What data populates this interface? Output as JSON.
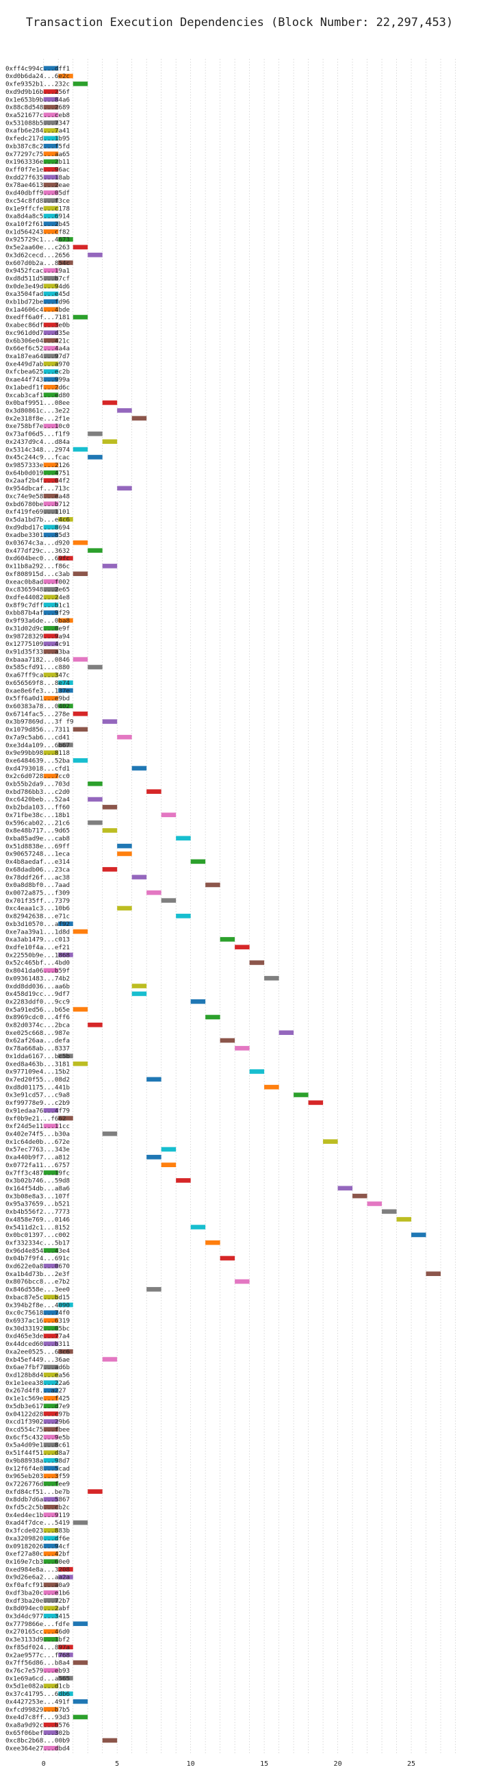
{
  "chart_data": {
    "type": "gantt",
    "title": "Transaction Execution Dependencies (Block Number: 22,297,453)",
    "xlabel": "",
    "ylabel": "",
    "xlim": [
      -2.5,
      29
    ],
    "xticks": [
      0,
      5,
      10,
      15,
      20,
      25
    ],
    "grid": "vertical dotted",
    "legend": "none",
    "palette": [
      "#1f77b4",
      "#ff7f0e",
      "#2ca02c",
      "#d62728",
      "#9467bd",
      "#8c564b",
      "#e377c2",
      "#7f7f7f",
      "#bcbd22",
      "#17becf"
    ],
    "transactions": [
      {
        "label": "0xff4c994c...dff1",
        "start": 0
      },
      {
        "label": "0xd0b6da24...6e2c",
        "start": 1
      },
      {
        "label": "0xfe9352b1...232c",
        "start": 2
      },
      {
        "label": "0xd9d9b16b...256f",
        "start": 0
      },
      {
        "label": "0x1e653b9b...84a6",
        "start": 0
      },
      {
        "label": "0x88c8d548...2689",
        "start": 0
      },
      {
        "label": "0xa521677c...ceb8",
        "start": 0
      },
      {
        "label": "0x531088b5...7347",
        "start": 0
      },
      {
        "label": "0xafb6e284...7a41",
        "start": 0
      },
      {
        "label": "0xfedc217d...1b95",
        "start": 0
      },
      {
        "label": "0xb387c8c2...f5fd",
        "start": 0
      },
      {
        "label": "0x77297c75...aa65",
        "start": 0
      },
      {
        "label": "0x1963336e...2b11",
        "start": 0
      },
      {
        "label": "0xff0f7e1e...96ac",
        "start": 0
      },
      {
        "label": "0xdd27f635...18ab",
        "start": 0
      },
      {
        "label": "0x78ae4613...2eae",
        "start": 0
      },
      {
        "label": "0xd40dbff9...05df",
        "start": 0
      },
      {
        "label": "0xc54c8fd8...f3ce",
        "start": 0
      },
      {
        "label": "0x1e9ffcfe...c178",
        "start": 0
      },
      {
        "label": "0xa8d4a8c5...6914",
        "start": 0
      },
      {
        "label": "0xa10f2f61...2b45",
        "start": 0
      },
      {
        "label": "0x1d564243...cf82",
        "start": 0
      },
      {
        "label": "0x925729c1...4673",
        "start": 1
      },
      {
        "label": "0x5e2aa60e...c263",
        "start": 2
      },
      {
        "label": "0x3d62cecd...2656",
        "start": 3
      },
      {
        "label": "0x607d0b2a...854c",
        "start": 1
      },
      {
        "label": "0x9452fcac...19a1",
        "start": 0
      },
      {
        "label": "0xd8d511d5...b7cf",
        "start": 0
      },
      {
        "label": "0x0de3e49d...94d6",
        "start": 0
      },
      {
        "label": "0xa3504fad...e45d",
        "start": 0
      },
      {
        "label": "0xb1bd72be...fd96",
        "start": 0
      },
      {
        "label": "0x1a4606c4...4bde",
        "start": 0
      },
      {
        "label": "0xedff6a0f...7181",
        "start": 2
      },
      {
        "label": "0xabec86df...3e0b",
        "start": 0
      },
      {
        "label": "0xc961d0d7...d35e",
        "start": 0
      },
      {
        "label": "0x6b306e04...421c",
        "start": 0
      },
      {
        "label": "0x66ef6c52...4a4a",
        "start": 0
      },
      {
        "label": "0xa187ea64...97d7",
        "start": 0
      },
      {
        "label": "0xe449d7ab...a970",
        "start": 0
      },
      {
        "label": "0xfcbea625...ec2b",
        "start": 0
      },
      {
        "label": "0xae44f743...999a",
        "start": 0
      },
      {
        "label": "0x1abedf1f...2d6c",
        "start": 0
      },
      {
        "label": "0xcab3caf1...ed80",
        "start": 0
      },
      {
        "label": "0x0baf9951...08ee",
        "start": 4
      },
      {
        "label": "0x3d80861c...3e22",
        "start": 5
      },
      {
        "label": "0x2e318f8e...2f1e",
        "start": 6
      },
      {
        "label": "0xe758bf7e...10c0",
        "start": 0
      },
      {
        "label": "0x73af06d5...f1f9",
        "start": 3
      },
      {
        "label": "0x2437d9c4...d84a",
        "start": 4
      },
      {
        "label": "0x5314c348...2974",
        "start": 2
      },
      {
        "label": "0x45c244c9...fcac",
        "start": 3
      },
      {
        "label": "0x9857333e...2126",
        "start": 0
      },
      {
        "label": "0x64b0d019...4751",
        "start": 0
      },
      {
        "label": "0x2aaf2b4f...04f2",
        "start": 0
      },
      {
        "label": "0x954dbcaf...713c",
        "start": 5
      },
      {
        "label": "0xc74e9e58...ea48",
        "start": 0
      },
      {
        "label": "0xbd6780be...b712",
        "start": 0
      },
      {
        "label": "0xf419fe69...1101",
        "start": 0
      },
      {
        "label": "0x5da1bd7b...e4c6",
        "start": 1
      },
      {
        "label": "0xd9dbd17c...8694",
        "start": 0
      },
      {
        "label": "0xadbe3301...85d3",
        "start": 0
      },
      {
        "label": "0x03674c3a...d920",
        "start": 2
      },
      {
        "label": "0x477df29c...3632",
        "start": 3
      },
      {
        "label": "0xd604bec0...69fc",
        "start": 1
      },
      {
        "label": "0x11b8a292...f86c",
        "start": 4
      },
      {
        "label": "0xf808915d...c3ab",
        "start": 2
      },
      {
        "label": "0xeac0b8ad...f002",
        "start": 0
      },
      {
        "label": "0xc8365948...2e65",
        "start": 0
      },
      {
        "label": "0xdfe44082...24e8",
        "start": 0
      },
      {
        "label": "0x8f9c7dff...b1c1",
        "start": 0
      },
      {
        "label": "0xbb87b4af...9f29",
        "start": 0
      },
      {
        "label": "0x9f93a6de...0ba8",
        "start": 1
      },
      {
        "label": "0x31d02d9c...0e9f",
        "start": 0
      },
      {
        "label": "0x98728329...9a94",
        "start": 0
      },
      {
        "label": "0x12775109...4c91",
        "start": 0
      },
      {
        "label": "0x91d35f33...a3ba",
        "start": 0
      },
      {
        "label": "0xbaaa7182...0846",
        "start": 2
      },
      {
        "label": "0x585cfd91...c880",
        "start": 3
      },
      {
        "label": "0xa67ff9ca...347c",
        "start": 0
      },
      {
        "label": "0x656569f8...8e74",
        "start": 1
      },
      {
        "label": "0xae8e6fe3...137e",
        "start": 1
      },
      {
        "label": "0x5ff6a0d1...e9bd",
        "start": 0
      },
      {
        "label": "0x60383a78...0402",
        "start": 1
      },
      {
        "label": "0x6714fac5...278e",
        "start": 2
      },
      {
        "label": "0x3b97869d...3f f9",
        "start": 4
      },
      {
        "label": "0x1079d856...7311",
        "start": 2
      },
      {
        "label": "0x7a9c5ab6...cd41",
        "start": 5
      },
      {
        "label": "0xe3d4a109...6b67",
        "start": 1
      },
      {
        "label": "0x9e99bb98...8118",
        "start": 0
      },
      {
        "label": "0xe6484639...52ba",
        "start": 2
      },
      {
        "label": "0xd4793018...cfd1",
        "start": 6
      },
      {
        "label": "0x2c6d0728...7cc0",
        "start": 0
      },
      {
        "label": "0xb55b2da9...703d",
        "start": 3
      },
      {
        "label": "0xbd786bb3...c2d0",
        "start": 7
      },
      {
        "label": "0xc6420beb...52a4",
        "start": 3
      },
      {
        "label": "0xb2bda103...ff60",
        "start": 4
      },
      {
        "label": "0x71fbe38c...18b1",
        "start": 8
      },
      {
        "label": "0x596cab02...21c6",
        "start": 3
      },
      {
        "label": "0x8e48b717...9d65",
        "start": 4
      },
      {
        "label": "0xba85ad9e...cab8",
        "start": 9
      },
      {
        "label": "0x51d8838e...69ff",
        "start": 5
      },
      {
        "label": "0x90657248...1eca",
        "start": 5
      },
      {
        "label": "0x4b8aedaf...e314",
        "start": 10
      },
      {
        "label": "0x68dadb06...23ca",
        "start": 4
      },
      {
        "label": "0x78ddf26f...ac38",
        "start": 6
      },
      {
        "label": "0x0a8d8bf0...7aad",
        "start": 11
      },
      {
        "label": "0x0072a875...f309",
        "start": 7
      },
      {
        "label": "0x701f35ff...7379",
        "start": 8
      },
      {
        "label": "0xc4eaa1c3...10b6",
        "start": 5
      },
      {
        "label": "0x82942638...e71c",
        "start": 9
      },
      {
        "label": "0xb3d10570...af92",
        "start": 1
      },
      {
        "label": "0xe7aa39a1...1d8d",
        "start": 2
      },
      {
        "label": "0xa3ab1479...c013",
        "start": 12
      },
      {
        "label": "0xdfe10f4a...ef21",
        "start": 13
      },
      {
        "label": "0x22550b9e...1868",
        "start": 1
      },
      {
        "label": "0x52c465bf...4bd0",
        "start": 14
      },
      {
        "label": "0x8041da06...b59f",
        "start": 0
      },
      {
        "label": "0x09361483...74b2",
        "start": 15
      },
      {
        "label": "0xdd8dd036...aa6b",
        "start": 6
      },
      {
        "label": "0x458d19cc...9df7",
        "start": 6
      },
      {
        "label": "0x2283ddf0...9cc9",
        "start": 10
      },
      {
        "label": "0x5a91ed56...b65e",
        "start": 2
      },
      {
        "label": "0x8969cdc0...4ff6",
        "start": 11
      },
      {
        "label": "0x82d0374c...2bca",
        "start": 3
      },
      {
        "label": "0xe025c668...987e",
        "start": 16
      },
      {
        "label": "0x62af26aa...defa",
        "start": 12
      },
      {
        "label": "0x78a668ab...8337",
        "start": 13
      },
      {
        "label": "0x1dda6167...bc5b",
        "start": 1
      },
      {
        "label": "0xed8a463b...3181",
        "start": 2
      },
      {
        "label": "0x977109e4...15b2",
        "start": 14
      },
      {
        "label": "0x7ed20f55...08d2",
        "start": 7
      },
      {
        "label": "0xd8d01175...441b",
        "start": 15
      },
      {
        "label": "0x3e91cd57...c9a8",
        "start": 17
      },
      {
        "label": "0xf99778e9...c2b9",
        "start": 18
      },
      {
        "label": "0x91edaa76...4f79",
        "start": 0
      },
      {
        "label": "0xf0b9e21...f662",
        "start": 1
      },
      {
        "label": "0xf24d5e11...11cc",
        "start": 0
      },
      {
        "label": "0x402e74f5...b30a",
        "start": 4
      },
      {
        "label": "0x1c64de0b...672e",
        "start": 19
      },
      {
        "label": "0x57ec7763...343e",
        "start": 8
      },
      {
        "label": "0xa440b9f7...a812",
        "start": 7
      },
      {
        "label": "0x0772fa11...6757",
        "start": 8
      },
      {
        "label": "0x7ff3c487...19fc",
        "start": 0
      },
      {
        "label": "0x3b02b746...59d8",
        "start": 9
      },
      {
        "label": "0x164f54db...a8a6",
        "start": 20
      },
      {
        "label": "0x3b08e8a3...107f",
        "start": 21
      },
      {
        "label": "0x95a37659...b521",
        "start": 22
      },
      {
        "label": "0xb4b556f2...7773",
        "start": 23
      },
      {
        "label": "0x4858e769...0146",
        "start": 24
      },
      {
        "label": "0x5411d2c1...8152",
        "start": 10
      },
      {
        "label": "0x0bc01397...c002",
        "start": 25
      },
      {
        "label": "0xf332334c...5b17",
        "start": 11
      },
      {
        "label": "0x96d4e854...43e4",
        "start": 0
      },
      {
        "label": "0x04b7f9f4...691c",
        "start": 12
      },
      {
        "label": "0xd622e0a8...0670",
        "start": 0
      },
      {
        "label": "0xa1b4d73b...2e3f",
        "start": 26
      },
      {
        "label": "0x8076bcc8...e7b2",
        "start": 13
      },
      {
        "label": "0x846d558e...3ee0",
        "start": 7
      },
      {
        "label": "0xbac87e5c...bd15",
        "start": 0
      },
      {
        "label": "0x394b2f8e...4090",
        "start": 1
      },
      {
        "label": "0xc0c75618...74f0",
        "start": 0
      },
      {
        "label": "0x6937ac16...6319",
        "start": 0
      },
      {
        "label": "0x30d33192...05bc",
        "start": 0
      },
      {
        "label": "0xd465e3de...77a4",
        "start": 0
      },
      {
        "label": "0x44dced60...b311",
        "start": 0
      },
      {
        "label": "0xa2ee0525...63c6",
        "start": 1
      },
      {
        "label": "0xb45ef449...36ae",
        "start": 4
      },
      {
        "label": "0x6ae7fbf7...ad6b",
        "start": 0
      },
      {
        "label": "0xd128b8d4...ea56",
        "start": 0
      },
      {
        "label": "0x1e1eea38...22a6",
        "start": 0
      },
      {
        "label": "0x267d4f8...a227",
        "start": 0
      },
      {
        "label": "0x1e1c569e...f425",
        "start": 0
      },
      {
        "label": "0x5db3e617...d7e9",
        "start": 0
      },
      {
        "label": "0x04122d28...c97b",
        "start": 0
      },
      {
        "label": "0xcd1f3902...29b6",
        "start": 0
      },
      {
        "label": "0xcd554c75...fbee",
        "start": 0
      },
      {
        "label": "0x6cf5c432...9e5b",
        "start": 0
      },
      {
        "label": "0x5a4d09e1...8c61",
        "start": 0
      },
      {
        "label": "0x51f44f51...d8a7",
        "start": 0
      },
      {
        "label": "0x9b88938a...98d7",
        "start": 0
      },
      {
        "label": "0x12f6f4e8...5cad",
        "start": 0
      },
      {
        "label": "0x965eb203...3f59",
        "start": 0
      },
      {
        "label": "0x7226776d...fee9",
        "start": 0
      },
      {
        "label": "0xfd84cf51...be7b",
        "start": 3
      },
      {
        "label": "0x8ddb7d6a...5867",
        "start": 0
      },
      {
        "label": "0xfd5c2c5b...cb2c",
        "start": 0
      },
      {
        "label": "0x4ed4ec1b...9119",
        "start": 0
      },
      {
        "label": "0xad4f7dce...5419",
        "start": 2
      },
      {
        "label": "0x3fcde023...883b",
        "start": 0
      },
      {
        "label": "0xa3209820...df6e",
        "start": 0
      },
      {
        "label": "0x09182026...94cf",
        "start": 0
      },
      {
        "label": "0xef27a80c...42bf",
        "start": 0
      },
      {
        "label": "0x169e7cb3...60e0",
        "start": 0
      },
      {
        "label": "0xed984e8a...3208",
        "start": 1
      },
      {
        "label": "0x9d26e6a2...aa2a",
        "start": 1
      },
      {
        "label": "0xf0afcf91...a0a9",
        "start": 0
      },
      {
        "label": "0xdf3ba20c...e1b6",
        "start": 0
      },
      {
        "label": "0xdf3ba20e...72b7",
        "start": 0
      },
      {
        "label": "0x8d094ec0...2abf",
        "start": 0
      },
      {
        "label": "0x3d4dc977...3415",
        "start": 0
      },
      {
        "label": "0x7779866e...fdfe",
        "start": 2
      },
      {
        "label": "0x270165cc...46d0",
        "start": 0
      },
      {
        "label": "0x3e3133d9...1bf2",
        "start": 0
      },
      {
        "label": "0xf85df024...897a",
        "start": 1
      },
      {
        "label": "0x2ae9577c...f768",
        "start": 1
      },
      {
        "label": "0x7ff56d86...b8a4",
        "start": 2
      },
      {
        "label": "0x76c7e579...eb93",
        "start": 0
      },
      {
        "label": "0x1e69a6cd...a565",
        "start": 1
      },
      {
        "label": "0x5d1e082a...d1cb",
        "start": 0
      },
      {
        "label": "0x37c41795...6db6",
        "start": 1
      },
      {
        "label": "0x4427253e...491f",
        "start": 2
      },
      {
        "label": "0xfcd99829...b7b5",
        "start": 0
      },
      {
        "label": "0xe4d7c8ff...93d3",
        "start": 2
      },
      {
        "label": "0xa8a9d92c...b576",
        "start": 0
      },
      {
        "label": "0x65f06bef...302b",
        "start": 0
      },
      {
        "label": "0xc8bc2b68...00b9",
        "start": 4
      },
      {
        "label": "0xee364e27...dbd4",
        "start": 0
      }
    ]
  }
}
